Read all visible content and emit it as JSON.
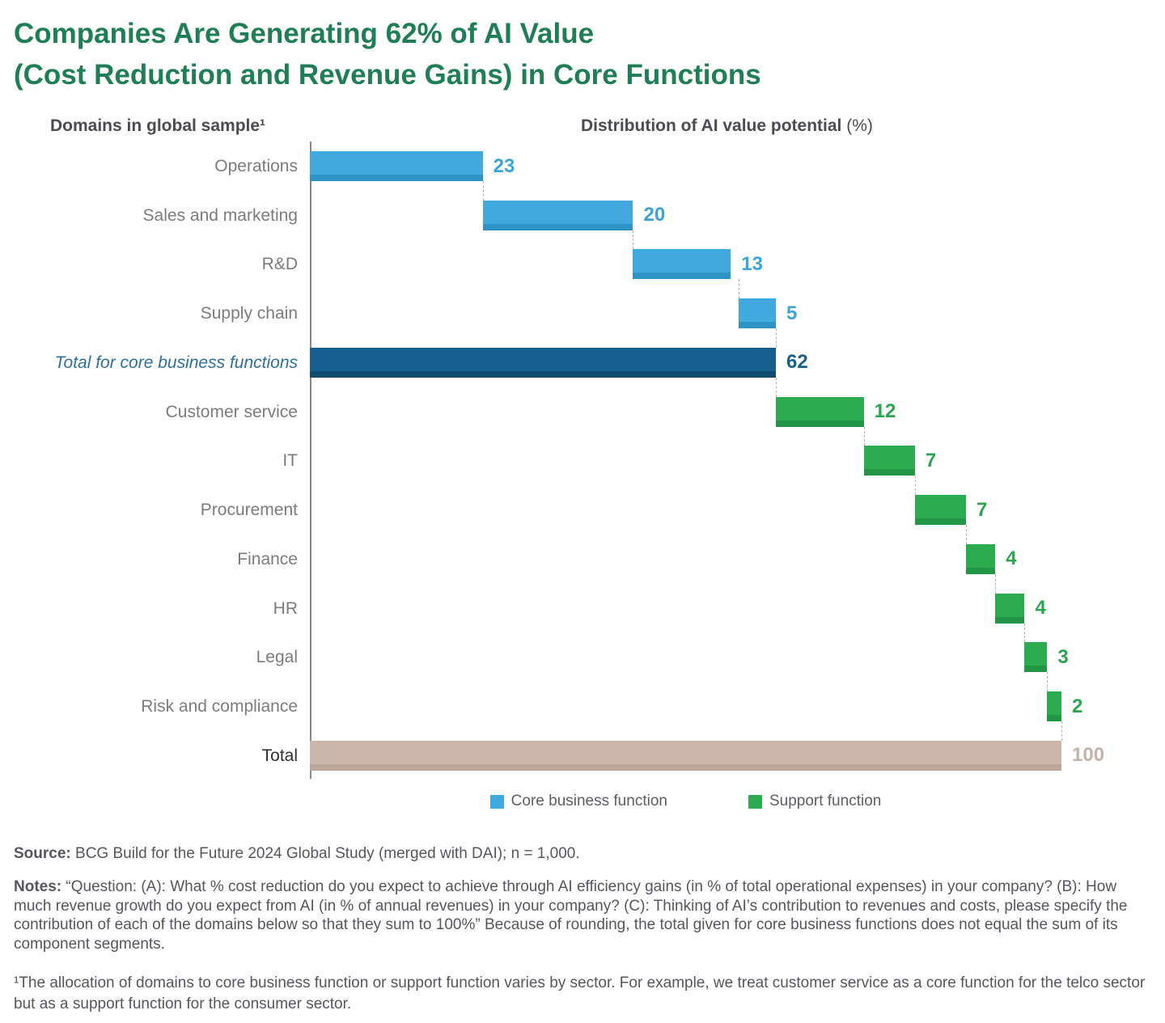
{
  "title": {
    "line1": "Companies Are Generating 62% of AI Value",
    "line2": "(Cost Reduction and Revenue Gains) in Core Functions"
  },
  "headers": {
    "left": "Domains in global sample¹",
    "right": "Distribution of AI value potential",
    "right_suffix": " (%)"
  },
  "chart_data": {
    "type": "bar",
    "subtype": "horizontal-waterfall",
    "unit": "%",
    "xlim": [
      0,
      100
    ],
    "grid": false,
    "title": "Distribution of AI value potential (%)",
    "left_axis_title": "Domains in global sample¹",
    "rows": [
      {
        "label": "Operations",
        "value": 23,
        "start": 0,
        "end": 23,
        "type": "core"
      },
      {
        "label": "Sales and marketing",
        "value": 20,
        "start": 23,
        "end": 43,
        "type": "core"
      },
      {
        "label": "R&D",
        "value": 13,
        "start": 43,
        "end": 56,
        "type": "core"
      },
      {
        "label": "Supply chain",
        "value": 5,
        "start": 57,
        "end": 62,
        "type": "core"
      },
      {
        "label": "Total for core business functions",
        "value": 62,
        "start": 0,
        "end": 62,
        "type": "total_core"
      },
      {
        "label": "Customer service",
        "value": 12,
        "start": 62,
        "end": 73.7,
        "type": "support"
      },
      {
        "label": "IT",
        "value": 7,
        "start": 73.7,
        "end": 80.5,
        "type": "support"
      },
      {
        "label": "Procurement",
        "value": 7,
        "start": 80.5,
        "end": 87.3,
        "type": "support"
      },
      {
        "label": "Finance",
        "value": 4,
        "start": 87.3,
        "end": 91.2,
        "type": "support"
      },
      {
        "label": "HR",
        "value": 4,
        "start": 91.2,
        "end": 95.1,
        "type": "support"
      },
      {
        "label": "Legal",
        "value": 3,
        "start": 95.1,
        "end": 98.1,
        "type": "support"
      },
      {
        "label": "Risk and compliance",
        "value": 2,
        "start": 98.1,
        "end": 100,
        "type": "support"
      },
      {
        "label": "Total",
        "value": 100,
        "start": 0,
        "end": 100,
        "type": "total"
      }
    ],
    "legend": [
      {
        "label": "Core business function",
        "color": "#41A9DD"
      },
      {
        "label": "Support function",
        "color": "#2CAB51"
      }
    ],
    "colors": {
      "core": "#41A9DD",
      "core_shade": "#2F94C5",
      "total_core": "#15608F",
      "total_core_shade": "#104C71",
      "support": "#2CAB51",
      "support_shade": "#229646",
      "total": "#CDB5AB",
      "total_shade": "#BFA69B"
    },
    "value_label_colors": {
      "core": "#3BA5DA",
      "total_core": "#17618F",
      "support": "#2BA44F",
      "total": "#C8B2A7"
    }
  },
  "footer": {
    "source_label": "Source:",
    "source_text": "BCG Build for the Future 2024 Global Study (merged with DAI); n = 1,000.",
    "notes_label": "Notes:",
    "notes_text": "“Question: (A): What % cost reduction do you expect to achieve through AI efficiency gains (in % of total operational expenses) in your company? (B): How much revenue growth  do you expect from AI (in % of annual revenues) in your company? (C): Thinking of AI’s contribution to revenues and costs, please specify the contribution of each  of the domains below so that they sum to 100%” Because of rounding, the total given for core business functions does not equal the sum of its component segments.",
    "footnote_text": "¹The allocation of domains to core business function or support function varies by sector. For example, we treat customer service as a core function for the telco sector but as a support function for the consumer sector."
  }
}
